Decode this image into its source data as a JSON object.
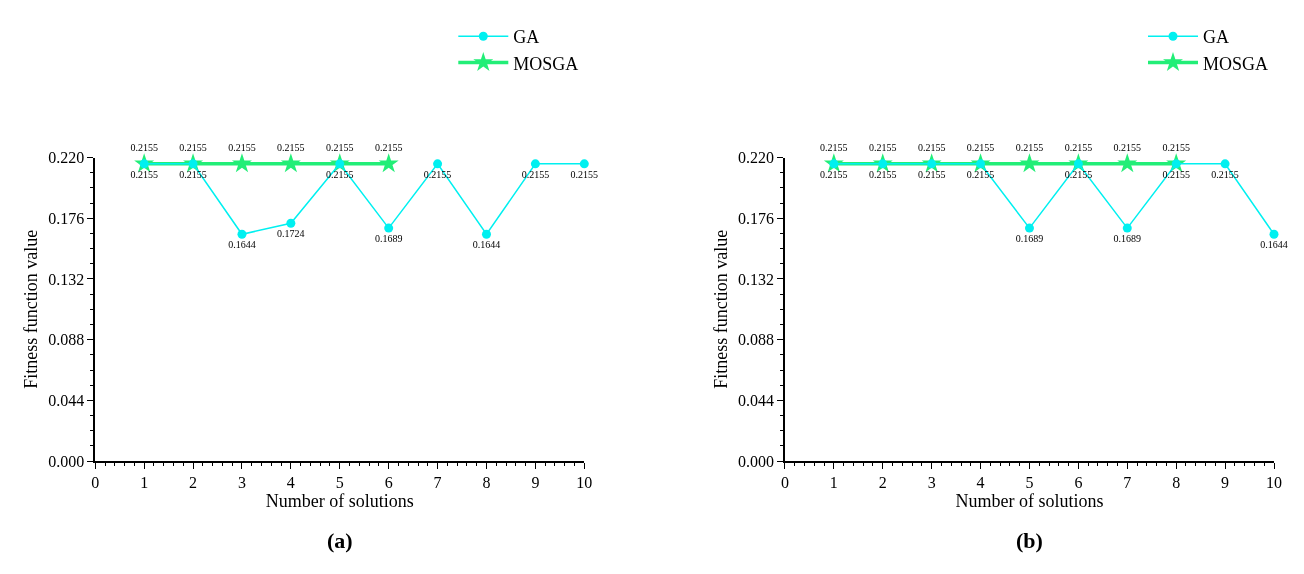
{
  "chart_data": [
    {
      "type": "line",
      "title": "(a)",
      "xlabel": "Number of solutions",
      "ylabel": "Fitness function value",
      "xlim": [
        0,
        10
      ],
      "xticks": [
        0,
        1,
        2,
        3,
        4,
        5,
        6,
        7,
        8,
        9,
        10
      ],
      "ylim": [
        0,
        0.22
      ],
      "yticks": [
        "0.000",
        "0.044",
        "0.088",
        "0.132",
        "0.176",
        "0.220"
      ],
      "legend": "top right",
      "data_labels": true,
      "series": [
        {
          "name": "GA",
          "color": "#00f0f0",
          "marker": "circle",
          "x": [
            1,
            2,
            3,
            4,
            5,
            6,
            7,
            8,
            9,
            10
          ],
          "values": [
            0.2155,
            0.2155,
            0.1644,
            0.1724,
            0.2155,
            0.1689,
            0.2155,
            0.1644,
            0.2155,
            0.2155
          ]
        },
        {
          "name": "MOSGA",
          "color": "#22ee77",
          "marker": "star",
          "x": [
            1,
            2,
            3,
            4,
            5,
            6
          ],
          "values": [
            0.2155,
            0.2155,
            0.2155,
            0.2155,
            0.2155,
            0.2155
          ]
        }
      ]
    },
    {
      "type": "line",
      "title": "(b)",
      "xlabel": "Number of solutions",
      "ylabel": "Fitness function value",
      "xlim": [
        0,
        10
      ],
      "xticks": [
        0,
        1,
        2,
        3,
        4,
        5,
        6,
        7,
        8,
        9,
        10
      ],
      "ylim": [
        0,
        0.22
      ],
      "yticks": [
        "0.000",
        "0.044",
        "0.088",
        "0.132",
        "0.176",
        "0.220"
      ],
      "legend": "top right",
      "data_labels": true,
      "series": [
        {
          "name": "GA",
          "color": "#00f0f0",
          "marker": "circle",
          "x": [
            1,
            2,
            3,
            4,
            5,
            6,
            7,
            8,
            9,
            10
          ],
          "values": [
            0.2155,
            0.2155,
            0.2155,
            0.2155,
            0.1689,
            0.2155,
            0.1689,
            0.2155,
            0.2155,
            0.1644
          ]
        },
        {
          "name": "MOSGA",
          "color": "#22ee77",
          "marker": "star",
          "x": [
            1,
            2,
            3,
            4,
            5,
            6,
            7,
            8
          ],
          "values": [
            0.2155,
            0.2155,
            0.2155,
            0.2155,
            0.2155,
            0.2155,
            0.2155,
            0.2155
          ]
        }
      ]
    }
  ]
}
